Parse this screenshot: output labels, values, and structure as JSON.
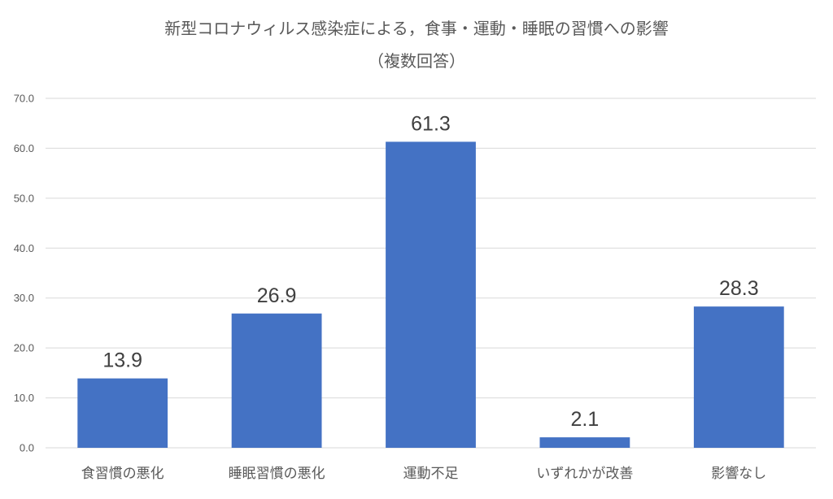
{
  "chart_data": {
    "type": "bar",
    "title": "新型コロナウィルス感染症による，食事・運動・睡眠の習慣への影響",
    "subtitle": "（複数回答）",
    "categories": [
      "食習慣の悪化",
      "睡眠習慣の悪化",
      "運動不足",
      "いずれかが改善",
      "影響なし"
    ],
    "values": [
      13.9,
      26.9,
      61.3,
      2.1,
      28.3
    ],
    "value_labels": [
      "13.9",
      "26.9",
      "61.3",
      "2.1",
      "28.3"
    ],
    "y_ticks": [
      "0.0",
      "10.0",
      "20.0",
      "30.0",
      "40.0",
      "50.0",
      "60.0",
      "70.0"
    ],
    "ylim": [
      0,
      70
    ],
    "xlabel": "",
    "ylabel": "",
    "grid": true,
    "legend": "none",
    "bar_color": "#4472C4"
  }
}
